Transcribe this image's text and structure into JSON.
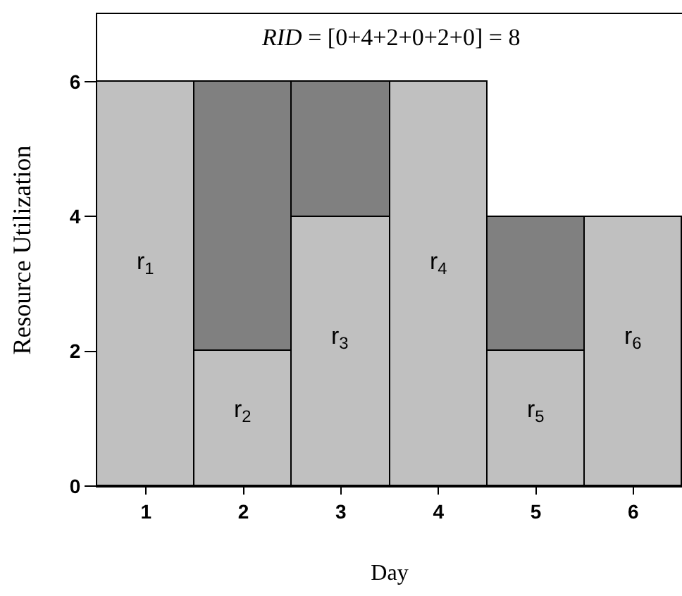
{
  "chart_data": {
    "type": "bar",
    "stacked": true,
    "title": "RID = [0+4+2+0+2+0] = 8",
    "xlabel": "Day",
    "ylabel": "Resource Utilization",
    "categories": [
      "1",
      "2",
      "3",
      "4",
      "5",
      "6"
    ],
    "series": [
      {
        "color": "#c0c0c0",
        "values": [
          6,
          2,
          4,
          6,
          2,
          4
        ]
      },
      {
        "color": "#808080",
        "values": [
          null,
          4,
          2,
          null,
          2,
          null
        ]
      }
    ],
    "ylim": [
      0,
      7
    ],
    "yticks": [
      0,
      2,
      4,
      6
    ],
    "annotations": [
      "r$_{1}$",
      "r$_{2}$",
      "r$_{3}$",
      "r$_{4}$",
      "r$_{5}$",
      "r$_{6}$"
    ]
  }
}
